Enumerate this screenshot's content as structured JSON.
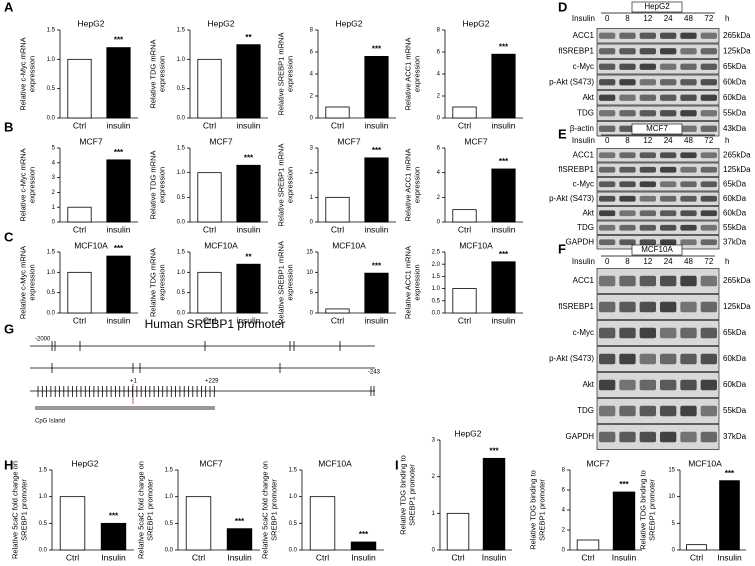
{
  "panel_labels": [
    "A",
    "B",
    "C",
    "D",
    "E",
    "F",
    "G",
    "H",
    "I"
  ],
  "chart_data": [
    {
      "type": "bar",
      "title": "HepG2",
      "y_label": [
        "Relative c-Myc mRNA",
        "expression"
      ],
      "categories": [
        "Ctrl",
        "insulin"
      ],
      "values": [
        1,
        1.2
      ],
      "colors": [
        "#ffffff",
        "#000000"
      ],
      "significance": "***",
      "ylim": [
        0,
        1.5
      ],
      "yticks": [
        {
          "value": 0,
          "label": "0.0"
        },
        {
          "value": 0.5,
          "label": "0.5"
        },
        {
          "value": 1,
          "label": "1.0"
        },
        {
          "value": 1.5,
          "label": "1.5"
        }
      ]
    },
    {
      "type": "bar",
      "title": "HepG2",
      "y_label": [
        "Relative TDG mRNA",
        "expression"
      ],
      "categories": [
        "Ctrl",
        "insulin"
      ],
      "values": [
        1,
        1.25
      ],
      "colors": [
        "#ffffff",
        "#000000"
      ],
      "significance": "**",
      "ylim": [
        0,
        1.5
      ],
      "yticks": [
        {
          "value": 0,
          "label": "0.0"
        },
        {
          "value": 0.5,
          "label": "0.5"
        },
        {
          "value": 1,
          "label": "1.0"
        },
        {
          "value": 1.5,
          "label": "1.5"
        }
      ]
    },
    {
      "type": "bar",
      "title": "HepG2",
      "y_label": [
        "Relative SREBP1 mRNA",
        "expression"
      ],
      "categories": [
        "Ctrl",
        "insulin"
      ],
      "values": [
        1,
        5.6
      ],
      "colors": [
        "#ffffff",
        "#000000"
      ],
      "significance": "***",
      "ylim": [
        0,
        8
      ],
      "yticks": [
        0,
        2,
        4,
        6,
        8
      ]
    },
    {
      "type": "bar",
      "title": "HepG2",
      "y_label": [
        "Relative ACC1 mRNA",
        "expression"
      ],
      "categories": [
        "Ctrl",
        "insulin"
      ],
      "values": [
        1,
        5.8
      ],
      "colors": [
        "#ffffff",
        "#000000"
      ],
      "significance": "***",
      "ylim": [
        0,
        8
      ],
      "yticks": [
        0,
        2,
        4,
        6,
        8
      ]
    },
    {
      "type": "bar",
      "title": "MCF7",
      "y_label": [
        "Relative c-Myc mRNA",
        "expression"
      ],
      "categories": [
        "Ctrl",
        "insulin"
      ],
      "values": [
        1,
        4.2
      ],
      "colors": [
        "#ffffff",
        "#000000"
      ],
      "significance": "***",
      "ylim": [
        0,
        5
      ],
      "yticks": [
        0,
        1,
        2,
        3,
        4,
        5
      ]
    },
    {
      "type": "bar",
      "title": "MCF7",
      "y_label": [
        "Relative TDG mRNA",
        "expression"
      ],
      "categories": [
        "Ctrl",
        "insulin"
      ],
      "values": [
        1,
        1.15
      ],
      "colors": [
        "#ffffff",
        "#000000"
      ],
      "significance": "***",
      "ylim": [
        0,
        1.5
      ],
      "yticks": [
        {
          "value": 0,
          "label": "0.0"
        },
        {
          "value": 0.5,
          "label": "0.5"
        },
        {
          "value": 1,
          "label": "1.0"
        },
        {
          "value": 1.5,
          "label": "1.5"
        }
      ]
    },
    {
      "type": "bar",
      "title": "MCF7",
      "y_label": [
        "Relative SREBP1 mRNA",
        "expression"
      ],
      "categories": [
        "Ctrl",
        "insulin"
      ],
      "values": [
        1,
        2.6
      ],
      "colors": [
        "#ffffff",
        "#000000"
      ],
      "significance": "***",
      "ylim": [
        0,
        3
      ],
      "yticks": [
        0,
        1,
        2,
        3
      ]
    },
    {
      "type": "bar",
      "title": "MCF7",
      "y_label": [
        "Relative ACC1 mRNA",
        "expression"
      ],
      "categories": [
        "Ctrl",
        "insulin"
      ],
      "values": [
        1,
        4.3
      ],
      "colors": [
        "#ffffff",
        "#000000"
      ],
      "significance": "***",
      "ylim": [
        0,
        6
      ],
      "yticks": [
        0,
        2,
        4,
        6
      ]
    },
    {
      "type": "bar",
      "title": "MCF10A",
      "y_label": [
        "Relative c-Myc mRNA",
        "expression"
      ],
      "categories": [
        "Ctrl",
        "insulin"
      ],
      "values": [
        1,
        1.4
      ],
      "colors": [
        "#ffffff",
        "#000000"
      ],
      "significance": "***",
      "ylim": [
        0,
        1.5
      ],
      "yticks": [
        {
          "value": 0,
          "label": "0.0"
        },
        {
          "value": 0.5,
          "label": "0.5"
        },
        {
          "value": 1,
          "label": "1.0"
        },
        {
          "value": 1.5,
          "label": "1.5"
        }
      ]
    },
    {
      "type": "bar",
      "title": "MCF10A",
      "y_label": [
        "Relative TDG mRNA",
        "expression"
      ],
      "categories": [
        "Ctrl",
        "insulin"
      ],
      "values": [
        1,
        1.2
      ],
      "colors": [
        "#ffffff",
        "#000000"
      ],
      "significance": "**",
      "ylim": [
        0,
        1.5
      ],
      "yticks": [
        {
          "value": 0,
          "label": "0.0"
        },
        {
          "value": 0.5,
          "label": "0.5"
        },
        {
          "value": 1,
          "label": "1.0"
        },
        {
          "value": 1.5,
          "label": "1.5"
        }
      ]
    },
    {
      "type": "bar",
      "title": "MCF10A",
      "y_label": [
        "Relative SREBP1 mRNA",
        "expression"
      ],
      "categories": [
        "Ctrl",
        "insulin"
      ],
      "values": [
        1,
        9.8
      ],
      "colors": [
        "#ffffff",
        "#000000"
      ],
      "significance": "***",
      "ylim": [
        0,
        15
      ],
      "yticks": [
        0,
        5,
        10,
        15
      ]
    },
    {
      "type": "bar",
      "title": "MCF10A",
      "y_label": [
        "Relative ACC1 mRNA",
        "expression"
      ],
      "categories": [
        "Ctrl",
        "insulin"
      ],
      "values": [
        1,
        2.1
      ],
      "colors": [
        "#ffffff",
        "#000000"
      ],
      "significance": "***",
      "ylim": [
        0,
        2.5
      ],
      "yticks": [
        {
          "value": 0,
          "label": "0.0"
        },
        {
          "value": 0.5,
          "label": "0.5"
        },
        {
          "value": 1,
          "label": "1.0"
        },
        {
          "value": 1.5,
          "label": "1.5"
        },
        {
          "value": 2,
          "label": "2.0"
        },
        {
          "value": 2.5,
          "label": "2.5"
        }
      ]
    },
    {
      "type": "bar",
      "title": "HepG2",
      "y_label": [
        "Relative 5caC fold change on",
        "SREBP1 promoter"
      ],
      "categories": [
        "Ctrl",
        "Insulin"
      ],
      "values": [
        1,
        0.5
      ],
      "colors": [
        "#ffffff",
        "#000000"
      ],
      "significance": "***",
      "ylim": [
        0,
        1.5
      ],
      "yticks": [
        {
          "value": 0,
          "label": "0.0"
        },
        {
          "value": 0.5,
          "label": "0.5"
        },
        {
          "value": 1,
          "label": "1.0"
        },
        {
          "value": 1.5,
          "label": "1.5"
        }
      ]
    },
    {
      "type": "bar",
      "title": "MCF7",
      "y_label": [
        "Relative 5caC fold change on",
        "SREBP1 promoter"
      ],
      "categories": [
        "Ctrl",
        "Insulin"
      ],
      "values": [
        1,
        0.4
      ],
      "colors": [
        "#ffffff",
        "#000000"
      ],
      "significance": "***",
      "ylim": [
        0,
        1.5
      ],
      "yticks": [
        {
          "value": 0,
          "label": "0.0"
        },
        {
          "value": 0.5,
          "label": "0.5"
        },
        {
          "value": 1,
          "label": "1.0"
        },
        {
          "value": 1.5,
          "label": "1.5"
        }
      ]
    },
    {
      "type": "bar",
      "title": "MCF10A",
      "y_label": [
        "Relative 5caC fold change on",
        "SREBP1 promoter"
      ],
      "categories": [
        "Ctrl",
        "Insulin"
      ],
      "values": [
        1,
        0.15
      ],
      "colors": [
        "#ffffff",
        "#000000"
      ],
      "significance": "***",
      "ylim": [
        0,
        1.5
      ],
      "yticks": [
        {
          "value": 0,
          "label": "0.0"
        },
        {
          "value": 0.5,
          "label": "0.5"
        },
        {
          "value": 1,
          "label": "1.0"
        },
        {
          "value": 1.5,
          "label": "1.5"
        }
      ]
    },
    {
      "type": "bar",
      "title": "HepG2",
      "y_label": [
        "Relative TDG binding to",
        "SREBP1 promoter"
      ],
      "categories": [
        "Ctrl",
        "Insulin"
      ],
      "values": [
        1,
        2.5
      ],
      "colors": [
        "#ffffff",
        "#000000"
      ],
      "significance": "***",
      "ylim": [
        0,
        3
      ],
      "yticks": [
        0,
        1,
        2,
        3
      ]
    },
    {
      "type": "bar",
      "title": "MCF7",
      "y_label": [
        "Relative TDG binding to",
        "SREBP1 promoter"
      ],
      "categories": [
        "Ctrl",
        "Insulin"
      ],
      "values": [
        1,
        5.8
      ],
      "colors": [
        "#ffffff",
        "#000000"
      ],
      "significance": "***",
      "ylim": [
        0,
        8
      ],
      "yticks": [
        0,
        2,
        4,
        6,
        8
      ]
    },
    {
      "type": "bar",
      "title": "MCF10A",
      "y_label": [
        "Relative TDG binding to",
        "SREBP1 promoter"
      ],
      "categories": [
        "Ctrl",
        "Insulin"
      ],
      "values": [
        1,
        13
      ],
      "colors": [
        "#ffffff",
        "#000000"
      ],
      "significance": "***",
      "ylim": [
        0,
        15
      ],
      "yticks": [
        0,
        5,
        10,
        15
      ]
    }
  ],
  "blots": [
    {
      "cell_line": "HepG2",
      "treatment": "Insulin",
      "times": [
        0,
        8,
        12,
        24,
        48,
        72
      ],
      "unit": "h",
      "rows": [
        {
          "protein": "ACC1",
          "size": "265kDa"
        },
        {
          "protein": "flSREBP1",
          "size": "125kDa"
        },
        {
          "protein": "c-Myc",
          "size": "65kDa"
        },
        {
          "protein": "p-Akt (S473)",
          "size": "60kDa"
        },
        {
          "protein": "Akt",
          "size": "60kDa"
        },
        {
          "protein": "TDG",
          "size": "55kDa"
        },
        {
          "protein": "β-actin",
          "size": "43kDa"
        }
      ]
    },
    {
      "cell_line": "MCF7",
      "treatment": "Insulin",
      "times": [
        0,
        8,
        12,
        24,
        48,
        72
      ],
      "unit": "h",
      "rows": [
        {
          "protein": "ACC1",
          "size": "265kDa"
        },
        {
          "protein": "flSREBP1",
          "size": "125kDa"
        },
        {
          "protein": "c-Myc",
          "size": "65kDa"
        },
        {
          "protein": "p-Akt (S473)",
          "size": "60kDa"
        },
        {
          "protein": "Akt",
          "size": "60kDa"
        },
        {
          "protein": "TDG",
          "size": "55kDa"
        },
        {
          "protein": "GAPDH",
          "size": "37kDa"
        }
      ]
    },
    {
      "cell_line": "MCF10A",
      "treatment": "Insulin",
      "times": [
        0,
        8,
        12,
        24,
        48,
        72
      ],
      "unit": "h",
      "rows": [
        {
          "protein": "ACC1",
          "size": "265kDa"
        },
        {
          "protein": "flSREBP1",
          "size": "125kDa"
        },
        {
          "protein": "c-Myc",
          "size": "65kDa"
        },
        {
          "protein": "p-Akt (S473)",
          "size": "60kDa"
        },
        {
          "protein": "Akt",
          "size": "60kDa"
        },
        {
          "protein": "TDG",
          "size": "55kDa"
        },
        {
          "protein": "GAPDH",
          "size": "37kDa"
        }
      ]
    }
  ],
  "promoter": {
    "title": "Human SREBP1 promoter",
    "labels": [
      "-2000",
      "-243",
      "+1",
      "+229",
      "CpG Island"
    ]
  }
}
